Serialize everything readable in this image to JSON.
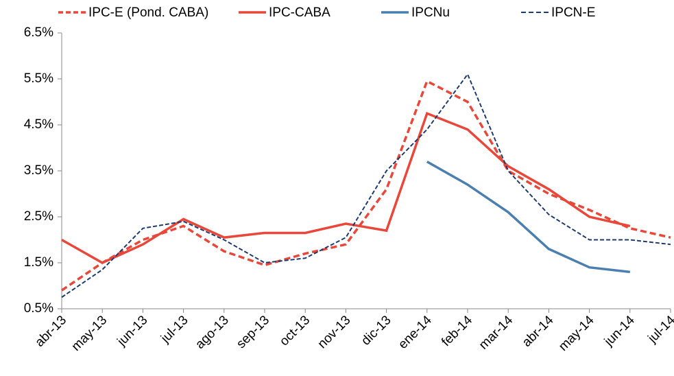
{
  "chart_data": {
    "type": "line",
    "categories": [
      "abr-13",
      "may-13",
      "jun-13",
      "jul-13",
      "ago-13",
      "sep-13",
      "oct-13",
      "nov-13",
      "dic-13",
      "ene-14",
      "feb-14",
      "mar-14",
      "abr-14",
      "may-14",
      "jun-14",
      "jul-14"
    ],
    "series": [
      {
        "name": "IPC-E (Pond. CABA)",
        "color": "#e8473a",
        "dash": true,
        "values": [
          0.9,
          1.5,
          2.0,
          2.3,
          1.75,
          1.45,
          1.7,
          1.9,
          3.1,
          5.45,
          5.0,
          3.5,
          3.0,
          2.65,
          2.25,
          2.05
        ]
      },
      {
        "name": "IPC-CABA",
        "color": "#e8473a",
        "dash": false,
        "values": [
          2.0,
          1.5,
          1.9,
          2.45,
          2.05,
          2.15,
          2.15,
          2.35,
          2.2,
          4.75,
          4.4,
          3.6,
          3.1,
          2.5,
          2.3,
          null
        ]
      },
      {
        "name": "IPCNu",
        "color": "#4a7fb0",
        "dash": false,
        "values": [
          null,
          null,
          null,
          null,
          null,
          null,
          null,
          null,
          null,
          3.7,
          3.2,
          2.6,
          1.8,
          1.4,
          1.3,
          null
        ]
      },
      {
        "name": "IPCN-E",
        "color": "#1f3a6e",
        "dash": true,
        "values": [
          0.75,
          1.35,
          2.25,
          2.4,
          2.0,
          1.5,
          1.6,
          2.05,
          3.5,
          4.4,
          5.6,
          3.5,
          2.55,
          2.0,
          2.0,
          1.9
        ]
      }
    ],
    "ylim": [
      0.5,
      6.5
    ],
    "yticks": [
      {
        "value": 0.5,
        "label": "0.5%"
      },
      {
        "value": 1.5,
        "label": "1.5%"
      },
      {
        "value": 2.5,
        "label": "2.5%"
      },
      {
        "value": 3.5,
        "label": "3.5%"
      },
      {
        "value": 4.5,
        "label": "4.5%"
      },
      {
        "value": 5.5,
        "label": "5.5%"
      },
      {
        "value": 6.5,
        "label": "6.5%"
      }
    ]
  }
}
